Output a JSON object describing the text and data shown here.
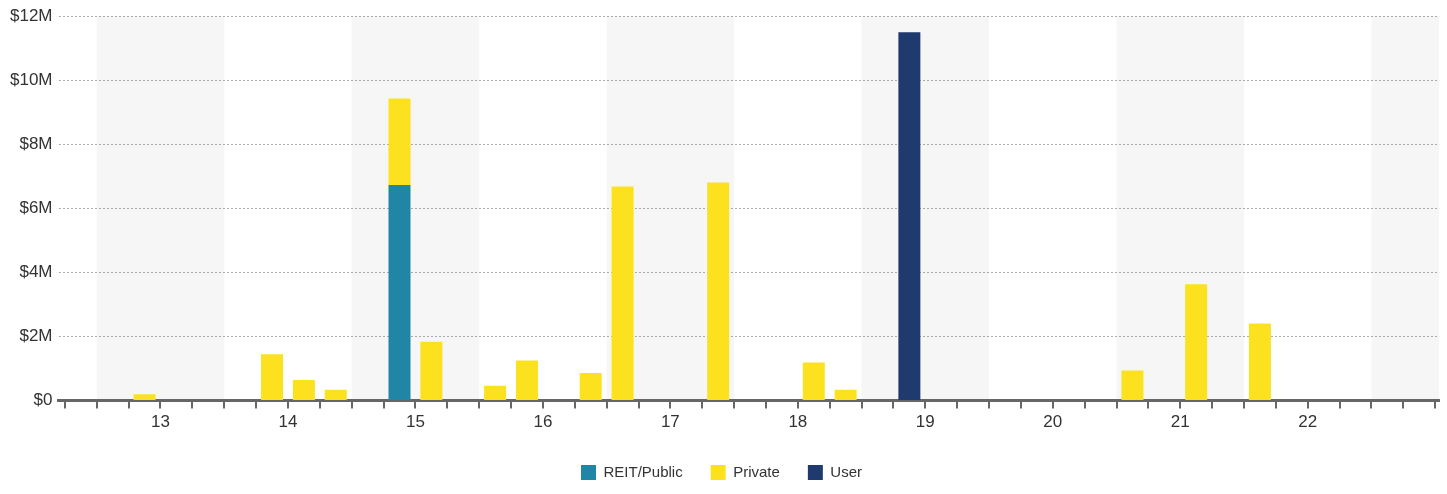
{
  "chart_data": {
    "type": "bar",
    "stacked": true,
    "x": [
      12.875,
      13.875,
      14.125,
      14.375,
      14.875,
      15.125,
      15.625,
      15.875,
      16.375,
      16.625,
      17.375,
      18.125,
      18.375,
      18.875,
      20.625,
      21.125,
      21.625
    ],
    "series": [
      {
        "name": "REIT/Public",
        "color": "#2185a6",
        "values": [
          null,
          null,
          null,
          null,
          6.73,
          null,
          null,
          null,
          null,
          null,
          null,
          null,
          null,
          null,
          null,
          null,
          null
        ]
      },
      {
        "name": "Private",
        "color": "#fce11e",
        "values": [
          0.2,
          1.45,
          0.64,
          0.34,
          2.7,
          1.84,
          0.46,
          1.25,
          0.86,
          6.68,
          6.81,
          1.19,
          0.34,
          null,
          0.94,
          3.63,
          2.41
        ]
      },
      {
        "name": "User",
        "color": "#1f3a6e",
        "values": [
          null,
          null,
          null,
          null,
          null,
          null,
          null,
          null,
          null,
          null,
          null,
          null,
          null,
          11.5,
          null,
          null,
          null
        ]
      }
    ],
    "xlim": [
      12.2,
      23.03
    ],
    "xticks": [
      {
        "value": 12.25,
        "label": null
      },
      {
        "value": 12.5,
        "label": null
      },
      {
        "value": 12.75,
        "label": null
      },
      {
        "value": 13,
        "label": "13"
      },
      {
        "value": 13.25,
        "label": null
      },
      {
        "value": 13.5,
        "label": null
      },
      {
        "value": 13.75,
        "label": null
      },
      {
        "value": 14,
        "label": "14"
      },
      {
        "value": 14.25,
        "label": null
      },
      {
        "value": 14.5,
        "label": null
      },
      {
        "value": 14.75,
        "label": null
      },
      {
        "value": 15,
        "label": "15"
      },
      {
        "value": 15.25,
        "label": null
      },
      {
        "value": 15.5,
        "label": null
      },
      {
        "value": 15.75,
        "label": null
      },
      {
        "value": 16,
        "label": "16"
      },
      {
        "value": 16.25,
        "label": null
      },
      {
        "value": 16.5,
        "label": null
      },
      {
        "value": 16.75,
        "label": null
      },
      {
        "value": 17,
        "label": "17"
      },
      {
        "value": 17.25,
        "label": null
      },
      {
        "value": 17.5,
        "label": null
      },
      {
        "value": 17.75,
        "label": null
      },
      {
        "value": 18,
        "label": "18"
      },
      {
        "value": 18.25,
        "label": null
      },
      {
        "value": 18.5,
        "label": null
      },
      {
        "value": 18.75,
        "label": null
      },
      {
        "value": 19,
        "label": "19"
      },
      {
        "value": 19.25,
        "label": null
      },
      {
        "value": 19.5,
        "label": null
      },
      {
        "value": 19.75,
        "label": null
      },
      {
        "value": 20,
        "label": "20"
      },
      {
        "value": 20.25,
        "label": null
      },
      {
        "value": 20.5,
        "label": null
      },
      {
        "value": 20.75,
        "label": null
      },
      {
        "value": 21,
        "label": "21"
      },
      {
        "value": 21.25,
        "label": null
      },
      {
        "value": 21.5,
        "label": null
      },
      {
        "value": 21.75,
        "label": null
      },
      {
        "value": 22,
        "label": "22"
      },
      {
        "value": 22.25,
        "label": null
      },
      {
        "value": 22.5,
        "label": null
      },
      {
        "value": 22.75,
        "label": null
      },
      {
        "value": 23,
        "label": null
      }
    ],
    "ylim": [
      0,
      12
    ],
    "yticks": [
      {
        "value": 0,
        "label": "$0"
      },
      {
        "value": 2,
        "label": "$2M"
      },
      {
        "value": 4,
        "label": "$4M"
      },
      {
        "value": 6,
        "label": "$6M"
      },
      {
        "value": 8,
        "label": "$8M"
      },
      {
        "value": 10,
        "label": "$10M"
      },
      {
        "value": 12,
        "label": "$12M"
      }
    ],
    "bands": [
      {
        "axis": "x",
        "from": 12.5,
        "to": 13.5,
        "color": "#f6f6f6"
      },
      {
        "axis": "x",
        "from": 14.5,
        "to": 15.5,
        "color": "#f6f6f6"
      },
      {
        "axis": "x",
        "from": 16.5,
        "to": 17.5,
        "color": "#f6f6f6"
      },
      {
        "axis": "x",
        "from": 18.5,
        "to": 19.5,
        "color": "#f6f6f6"
      },
      {
        "axis": "x",
        "from": 20.5,
        "to": 21.5,
        "color": "#f6f6f6"
      },
      {
        "axis": "x",
        "from": 22.5,
        "to": 23.03,
        "color": "#f6f6f6"
      }
    ],
    "grid": "y",
    "legend": "bottom"
  }
}
